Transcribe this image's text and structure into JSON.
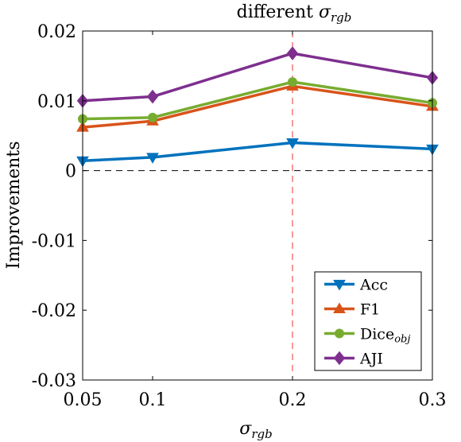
{
  "chart_data": {
    "type": "line",
    "title_main": "different ",
    "title_sym": "σ",
    "title_sub": "rgb",
    "xlabel_sym": "σ",
    "xlabel_sub": "rgb",
    "ylabel": "Improvements",
    "x": [
      0.05,
      0.1,
      0.2,
      0.3
    ],
    "x_ticks": [
      "0.05",
      "0.1",
      "0.2",
      "0.3"
    ],
    "y_ticks": [
      {
        "value": 0.02,
        "label": "0.02"
      },
      {
        "value": 0.01,
        "label": "0.01"
      },
      {
        "value": 0,
        "label": "0"
      },
      {
        "value": -0.01,
        "label": "-0.01"
      },
      {
        "value": -0.02,
        "label": "-0.02"
      },
      {
        "value": -0.03,
        "label": "-0.03"
      }
    ],
    "ylim": [
      -0.03,
      0.02
    ],
    "xlim": [
      0.05,
      0.3
    ],
    "vline_x": 0.2,
    "zero_line": true,
    "grid": false,
    "legend_position": "bottom-right",
    "series": [
      {
        "name": "Acc",
        "sub": "",
        "color": "#0072BD",
        "marker": "triangle-down",
        "values": [
          0.0014,
          0.0019,
          0.004,
          0.0031
        ]
      },
      {
        "name": "F1",
        "sub": "",
        "color": "#D95319",
        "marker": "triangle-up",
        "values": [
          0.0062,
          0.0071,
          0.0121,
          0.0092
        ]
      },
      {
        "name": "Dice",
        "sub": "obj",
        "color": "#77AC30",
        "marker": "circle",
        "values": [
          0.0074,
          0.0076,
          0.0127,
          0.0097
        ]
      },
      {
        "name": "AJI",
        "sub": "",
        "color": "#7E2F8E",
        "marker": "diamond",
        "values": [
          0.01,
          0.0106,
          0.0168,
          0.0133
        ]
      }
    ]
  }
}
